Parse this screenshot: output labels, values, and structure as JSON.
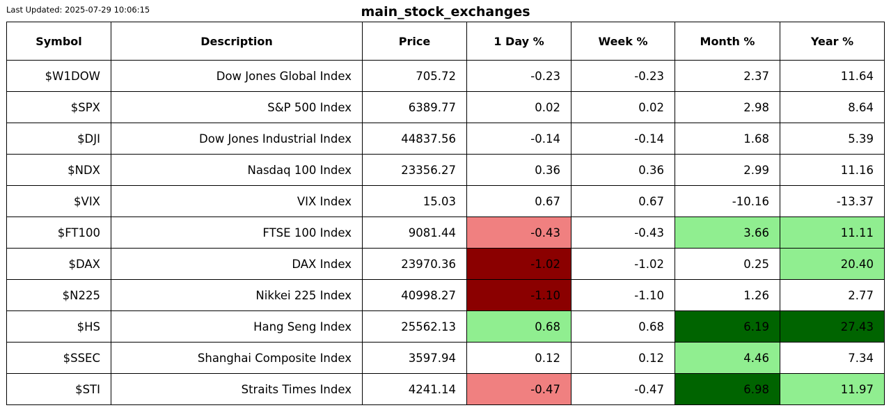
{
  "header": {
    "last_updated": "Last Updated: 2025-07-29 10:06:15",
    "title": "main_stock_exchanges"
  },
  "colors": {
    "lightred": "#f08080",
    "darkred": "#8b0000",
    "lightgreen": "#90ee90",
    "darkgreen": "#006400"
  },
  "table": {
    "columns": [
      "Symbol",
      "Description",
      "Price",
      "1 Day %",
      "Week %",
      "Month %",
      "Year %"
    ],
    "rows": [
      {
        "cells": [
          "$W1DOW",
          "Dow Jones Global Index",
          "705.72",
          "-0.23",
          "-0.23",
          "2.37",
          "11.64"
        ],
        "highlights": [
          "",
          "",
          "",
          "",
          "",
          "",
          ""
        ]
      },
      {
        "cells": [
          "$SPX",
          "S&P 500 Index",
          "6389.77",
          "0.02",
          "0.02",
          "2.98",
          "8.64"
        ],
        "highlights": [
          "",
          "",
          "",
          "",
          "",
          "",
          ""
        ]
      },
      {
        "cells": [
          "$DJI",
          "Dow Jones Industrial Index",
          "44837.56",
          "-0.14",
          "-0.14",
          "1.68",
          "5.39"
        ],
        "highlights": [
          "",
          "",
          "",
          "",
          "",
          "",
          ""
        ]
      },
      {
        "cells": [
          "$NDX",
          "Nasdaq 100 Index",
          "23356.27",
          "0.36",
          "0.36",
          "2.99",
          "11.16"
        ],
        "highlights": [
          "",
          "",
          "",
          "",
          "",
          "",
          ""
        ]
      },
      {
        "cells": [
          "$VIX",
          "VIX Index",
          "15.03",
          "0.67",
          "0.67",
          "-10.16",
          "-13.37"
        ],
        "highlights": [
          "",
          "",
          "",
          "",
          "",
          "",
          ""
        ]
      },
      {
        "cells": [
          "$FT100",
          "FTSE 100 Index",
          "9081.44",
          "-0.43",
          "-0.43",
          "3.66",
          "11.11"
        ],
        "highlights": [
          "",
          "",
          "",
          "lightred",
          "",
          "lightgreen",
          "lightgreen"
        ]
      },
      {
        "cells": [
          "$DAX",
          "DAX Index",
          "23970.36",
          "-1.02",
          "-1.02",
          "0.25",
          "20.40"
        ],
        "highlights": [
          "",
          "",
          "",
          "darkred",
          "",
          "",
          "lightgreen"
        ]
      },
      {
        "cells": [
          "$N225",
          "Nikkei 225 Index",
          "40998.27",
          "-1.10",
          "-1.10",
          "1.26",
          "2.77"
        ],
        "highlights": [
          "",
          "",
          "",
          "darkred",
          "",
          "",
          ""
        ]
      },
      {
        "cells": [
          "$HS",
          "Hang Seng Index",
          "25562.13",
          "0.68",
          "0.68",
          "6.19",
          "27.43"
        ],
        "highlights": [
          "",
          "",
          "",
          "lightgreen",
          "",
          "darkgreen",
          "darkgreen"
        ]
      },
      {
        "cells": [
          "$SSEC",
          "Shanghai Composite Index",
          "3597.94",
          "0.12",
          "0.12",
          "4.46",
          "7.34"
        ],
        "highlights": [
          "",
          "",
          "",
          "",
          "",
          "lightgreen",
          ""
        ]
      },
      {
        "cells": [
          "$STI",
          "Straits Times Index",
          "4241.14",
          "-0.47",
          "-0.47",
          "6.98",
          "11.97"
        ],
        "highlights": [
          "",
          "",
          "",
          "lightred",
          "",
          "darkgreen",
          "lightgreen"
        ]
      }
    ]
  }
}
